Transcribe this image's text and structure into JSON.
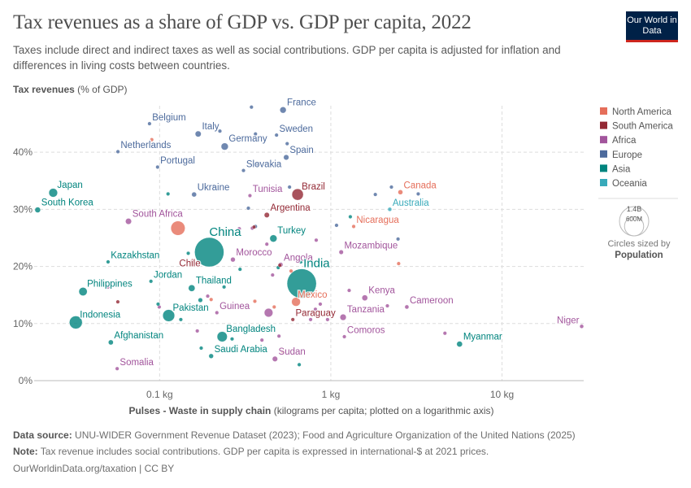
{
  "header": {
    "title": "Tax revenues as a share of GDP vs. GDP per capita, 2022",
    "subtitle": "Taxes include direct and indirect taxes as well as social contributions. GDP per capita is adjusted for inflation and differences in living costs between countries.",
    "logo": "Our World in Data"
  },
  "footer": {
    "source_label": "Data source:",
    "source": "UNU-WIDER Government Revenue Dataset (2023); Food and Agriculture Organization of the United Nations (2025)",
    "note_label": "Note:",
    "note": "Tax revenue includes social contributions. GDP per capita is expressed in international-$ at 2021 prices.",
    "url": "OurWorldinData.org/taxation | CC BY"
  },
  "chart_data": {
    "type": "scatter",
    "title": "Tax revenues as a share of GDP vs. GDP per capita, 2022",
    "ylabel_bold": "Tax revenues",
    "ylabel_rest": "(% of GDP)",
    "xlabel_bold": "Pulses - Waste in supply chain",
    "xlabel_rest": "(kilograms per capita; plotted on a logarithmic axis)",
    "x_scale": "log",
    "xlim": [
      0.0185,
      30
    ],
    "ylim": [
      0,
      48
    ],
    "x_ticks": [
      {
        "value": 0.1,
        "label": "0.1 kg"
      },
      {
        "value": 1,
        "label": "1 kg"
      },
      {
        "value": 10,
        "label": "10 kg"
      }
    ],
    "y_ticks": [
      {
        "value": 0,
        "label": "0%"
      },
      {
        "value": 10,
        "label": "10%"
      },
      {
        "value": 20,
        "label": "20%"
      },
      {
        "value": 30,
        "label": "30%"
      },
      {
        "value": 40,
        "label": "40%"
      }
    ],
    "grid": true,
    "legend_position": "right",
    "legend": [
      {
        "name": "North America",
        "color": "#e56e5a"
      },
      {
        "name": "South America",
        "color": "#932834"
      },
      {
        "name": "Africa",
        "color": "#a2559c"
      },
      {
        "name": "Europe",
        "color": "#4c6a9c"
      },
      {
        "name": "Asia",
        "color": "#00847e"
      },
      {
        "name": "Oceania",
        "color": "#38aaba"
      }
    ],
    "size_legend": {
      "values": [
        {
          "pop": 1400,
          "label": "1.4B"
        },
        {
          "pop": 600,
          "label": "600M"
        }
      ],
      "caption": "Circles sized by",
      "variable": "Population"
    },
    "points": [
      {
        "label": "Japan",
        "x": 0.0239,
        "y": 32.9,
        "region": "Asia",
        "pop": 125
      },
      {
        "label": "South Korea",
        "x": 0.0194,
        "y": 29.9,
        "region": "Asia",
        "pop": 52
      },
      {
        "label": "Belgium",
        "x": 0.0873,
        "y": 45.0,
        "region": "Europe",
        "pop": 12
      },
      {
        "label": "Netherlands",
        "x": 0.0571,
        "y": 40.1,
        "region": "Europe",
        "pop": 18
      },
      {
        "label": "Portugal",
        "x": 0.0973,
        "y": 37.4,
        "region": "Europe",
        "pop": 10
      },
      {
        "label": "Italy",
        "x": 0.168,
        "y": 43.2,
        "region": "Europe",
        "pop": 59
      },
      {
        "label": "Germany",
        "x": 0.24,
        "y": 41.0,
        "region": "Europe",
        "pop": 84
      },
      {
        "label": "Slovakia",
        "x": 0.309,
        "y": 36.8,
        "region": "Europe",
        "pop": 5
      },
      {
        "label": "Ukraine",
        "x": 0.159,
        "y": 32.6,
        "region": "Europe",
        "pop": 39
      },
      {
        "label": "France",
        "x": 0.526,
        "y": 47.4,
        "region": "Europe",
        "pop": 66
      },
      {
        "label": "Sweden",
        "x": 0.482,
        "y": 43.0,
        "region": "Europe",
        "pop": 10
      },
      {
        "label": "Spain",
        "x": 0.549,
        "y": 39.1,
        "region": "Europe",
        "pop": 47
      },
      {
        "label": "Brazil",
        "x": 0.64,
        "y": 32.6,
        "region": "South America",
        "pop": 215
      },
      {
        "label": "Argentina",
        "x": 0.423,
        "y": 29.0,
        "region": "South America",
        "pop": 45
      },
      {
        "label": "Tunisia",
        "x": 0.337,
        "y": 32.4,
        "region": "Africa",
        "pop": 12
      },
      {
        "label": "South Africa",
        "x": 0.0658,
        "y": 27.9,
        "region": "Africa",
        "pop": 60
      },
      {
        "label": "China",
        "x": 0.195,
        "y": 22.5,
        "region": "Asia",
        "pop": 1412
      },
      {
        "label": "Chile",
        "x": 0.155,
        "y": 20.9,
        "region": "South America",
        "pop": 20
      },
      {
        "label": "Turkey",
        "x": 0.462,
        "y": 24.9,
        "region": "Asia",
        "pop": 85
      },
      {
        "label": "Angola",
        "x": 0.509,
        "y": 20.3,
        "region": "Africa",
        "pop": 36
      },
      {
        "label": "Morocco",
        "x": 0.268,
        "y": 21.2,
        "region": "Africa",
        "pop": 37
      },
      {
        "label": "Kazakhstan",
        "x": 0.05,
        "y": 20.8,
        "region": "Asia",
        "pop": 19
      },
      {
        "label": "Jordan",
        "x": 0.089,
        "y": 17.4,
        "region": "Asia",
        "pop": 11
      },
      {
        "label": "Thailand",
        "x": 0.154,
        "y": 16.2,
        "region": "Asia",
        "pop": 72
      },
      {
        "label": "India",
        "x": 0.676,
        "y": 17.0,
        "region": "Asia",
        "pop": 1417
      },
      {
        "label": "Mexico",
        "x": 0.626,
        "y": 13.8,
        "region": "North America",
        "pop": 127
      },
      {
        "label": "Philippines",
        "x": 0.0357,
        "y": 15.6,
        "region": "Asia",
        "pop": 115
      },
      {
        "label": "Indonesia",
        "x": 0.0324,
        "y": 10.2,
        "region": "Asia",
        "pop": 275
      },
      {
        "label": "Pakistan",
        "x": 0.113,
        "y": 11.4,
        "region": "Asia",
        "pop": 235
      },
      {
        "label": "Guinea",
        "x": 0.216,
        "y": 11.9,
        "region": "Africa",
        "pop": 14
      },
      {
        "label": "Paraguay",
        "x": 0.6,
        "y": 10.7,
        "region": "South America",
        "pop": 7
      },
      {
        "label": "Bangladesh",
        "x": 0.232,
        "y": 7.7,
        "region": "Asia",
        "pop": 171
      },
      {
        "label": "Saudi Arabia",
        "x": 0.2,
        "y": 4.3,
        "region": "Asia",
        "pop": 36
      },
      {
        "label": "Sudan",
        "x": 0.472,
        "y": 3.8,
        "region": "Africa",
        "pop": 47
      },
      {
        "label": "Afghanistan",
        "x": 0.0519,
        "y": 6.7,
        "region": "Asia",
        "pop": 41
      },
      {
        "label": "Somalia",
        "x": 0.0565,
        "y": 2.1,
        "region": "Africa",
        "pop": 17
      },
      {
        "label": "Canada",
        "x": 2.55,
        "y": 33.0,
        "region": "North America",
        "pop": 39
      },
      {
        "label": "Australia",
        "x": 2.21,
        "y": 30.0,
        "region": "Oceania",
        "pop": 26
      },
      {
        "label": "Nicaragua",
        "x": 1.36,
        "y": 27.0,
        "region": "North America",
        "pop": 7
      },
      {
        "label": "Mozambique",
        "x": 1.15,
        "y": 22.5,
        "region": "Africa",
        "pop": 33
      },
      {
        "label": "Kenya",
        "x": 1.58,
        "y": 14.5,
        "region": "Africa",
        "pop": 54
      },
      {
        "label": "Tanzania",
        "x": 1.18,
        "y": 11.1,
        "region": "Africa",
        "pop": 65
      },
      {
        "label": "Cameroon",
        "x": 2.78,
        "y": 12.9,
        "region": "Africa",
        "pop": 28
      },
      {
        "label": "Comoros",
        "x": 1.2,
        "y": 7.7,
        "region": "Africa",
        "pop": 1
      },
      {
        "label": "Myanmar",
        "x": 5.65,
        "y": 6.4,
        "region": "Asia",
        "pop": 54
      },
      {
        "label": "Niger",
        "x": 29.2,
        "y": 9.5,
        "region": "Africa",
        "pop": 26
      },
      {
        "x": 0.433,
        "y": 11.9,
        "region": "Africa",
        "pop": 123
      },
      {
        "x": 0.128,
        "y": 26.7,
        "region": "North America",
        "pop": 333
      },
      {
        "x": 0.344,
        "y": 47.9,
        "region": "Europe",
        "pop": 6
      },
      {
        "x": 0.225,
        "y": 43.7,
        "region": "Europe",
        "pop": 6
      },
      {
        "x": 0.363,
        "y": 43.2,
        "region": "Europe",
        "pop": 6
      },
      {
        "x": 0.556,
        "y": 41.5,
        "region": "Europe",
        "pop": 9
      },
      {
        "x": 0.371,
        "y": 37.8,
        "region": "Europe",
        "pop": 38
      },
      {
        "x": 0.206,
        "y": 34.1,
        "region": "Europe",
        "pop": 6
      },
      {
        "x": 0.574,
        "y": 33.9,
        "region": "Europe",
        "pop": 5
      },
      {
        "x": 0.33,
        "y": 30.2,
        "region": "Europe",
        "pop": 4
      },
      {
        "x": 0.363,
        "y": 27.0,
        "region": "Europe",
        "pop": 5
      },
      {
        "x": 1.08,
        "y": 27.2,
        "region": "Europe",
        "pop": 4
      },
      {
        "x": 1.82,
        "y": 32.6,
        "region": "Europe",
        "pop": 4
      },
      {
        "x": 2.26,
        "y": 33.9,
        "region": "Europe",
        "pop": 5
      },
      {
        "x": 3.24,
        "y": 32.7,
        "region": "Europe",
        "pop": 4
      },
      {
        "x": 2.47,
        "y": 24.8,
        "region": "Europe",
        "pop": 3
      },
      {
        "x": 0.09,
        "y": 42.2,
        "region": "North America",
        "pop": 3
      },
      {
        "x": 0.2,
        "y": 14.2,
        "region": "North America",
        "pop": 5
      },
      {
        "x": 0.36,
        "y": 13.9,
        "region": "North America",
        "pop": 5
      },
      {
        "x": 0.467,
        "y": 12.9,
        "region": "North America",
        "pop": 6
      },
      {
        "x": 0.526,
        "y": 5.0,
        "region": "North America",
        "pop": 4
      },
      {
        "x": 0.586,
        "y": 19.2,
        "region": "North America",
        "pop": 5
      },
      {
        "x": 2.49,
        "y": 20.5,
        "region": "North America",
        "pop": 4
      },
      {
        "x": 0.112,
        "y": 32.7,
        "region": "Asia",
        "pop": 6
      },
      {
        "x": 0.147,
        "y": 22.3,
        "region": "Asia",
        "pop": 10
      },
      {
        "x": 0.173,
        "y": 14.1,
        "region": "Asia",
        "pop": 34
      },
      {
        "x": 0.238,
        "y": 16.4,
        "region": "Asia",
        "pop": 6
      },
      {
        "x": 0.295,
        "y": 19.5,
        "region": "Asia",
        "pop": 6
      },
      {
        "x": 0.493,
        "y": 19.8,
        "region": "Asia",
        "pop": 7
      },
      {
        "x": 0.668,
        "y": 20.8,
        "region": "Asia",
        "pop": 6
      },
      {
        "x": 0.098,
        "y": 13.4,
        "region": "Asia",
        "pop": 6
      },
      {
        "x": 0.133,
        "y": 10.7,
        "region": "Asia",
        "pop": 6
      },
      {
        "x": 0.265,
        "y": 7.3,
        "region": "Asia",
        "pop": 8
      },
      {
        "x": 0.175,
        "y": 5.7,
        "region": "Asia",
        "pop": 5
      },
      {
        "x": 0.654,
        "y": 2.8,
        "region": "Asia",
        "pop": 5
      },
      {
        "x": 1.3,
        "y": 28.7,
        "region": "Asia",
        "pop": 5
      },
      {
        "x": 0.292,
        "y": 26.6,
        "region": "Africa",
        "pop": 5
      },
      {
        "x": 0.348,
        "y": 26.7,
        "region": "Africa",
        "pop": 5
      },
      {
        "x": 0.423,
        "y": 23.9,
        "region": "Africa",
        "pop": 5
      },
      {
        "x": 0.822,
        "y": 24.6,
        "region": "Africa",
        "pop": 6
      },
      {
        "x": 0.457,
        "y": 18.5,
        "region": "Africa",
        "pop": 7
      },
      {
        "x": 0.05,
        "y": 16.4,
        "region": "Africa",
        "pop": 6
      },
      {
        "x": 0.0995,
        "y": 12.9,
        "region": "Africa",
        "pop": 12
      },
      {
        "x": 0.191,
        "y": 14.8,
        "region": "Africa",
        "pop": 7
      },
      {
        "x": 0.813,
        "y": 12.5,
        "region": "Africa",
        "pop": 8
      },
      {
        "x": 0.868,
        "y": 13.4,
        "region": "Africa",
        "pop": 9
      },
      {
        "x": 0.762,
        "y": 10.7,
        "region": "Africa",
        "pop": 5
      },
      {
        "x": 0.957,
        "y": 10.7,
        "region": "Africa",
        "pop": 5
      },
      {
        "x": 0.166,
        "y": 8.7,
        "region": "Africa",
        "pop": 6
      },
      {
        "x": 0.498,
        "y": 7.8,
        "region": "Africa",
        "pop": 6
      },
      {
        "x": 0.396,
        "y": 7.1,
        "region": "Africa",
        "pop": 5
      },
      {
        "x": 1.28,
        "y": 15.8,
        "region": "Africa",
        "pop": 6
      },
      {
        "x": 2.14,
        "y": 13.1,
        "region": "Africa",
        "pop": 5
      },
      {
        "x": 4.64,
        "y": 8.3,
        "region": "Africa",
        "pop": 6
      },
      {
        "x": 0.057,
        "y": 13.8,
        "region": "South America",
        "pop": 5
      },
      {
        "x": 0.504,
        "y": 20.2,
        "region": "South America",
        "pop": 5
      },
      {
        "x": 0.356,
        "y": 26.9,
        "region": "South America",
        "pop": 5
      }
    ]
  }
}
